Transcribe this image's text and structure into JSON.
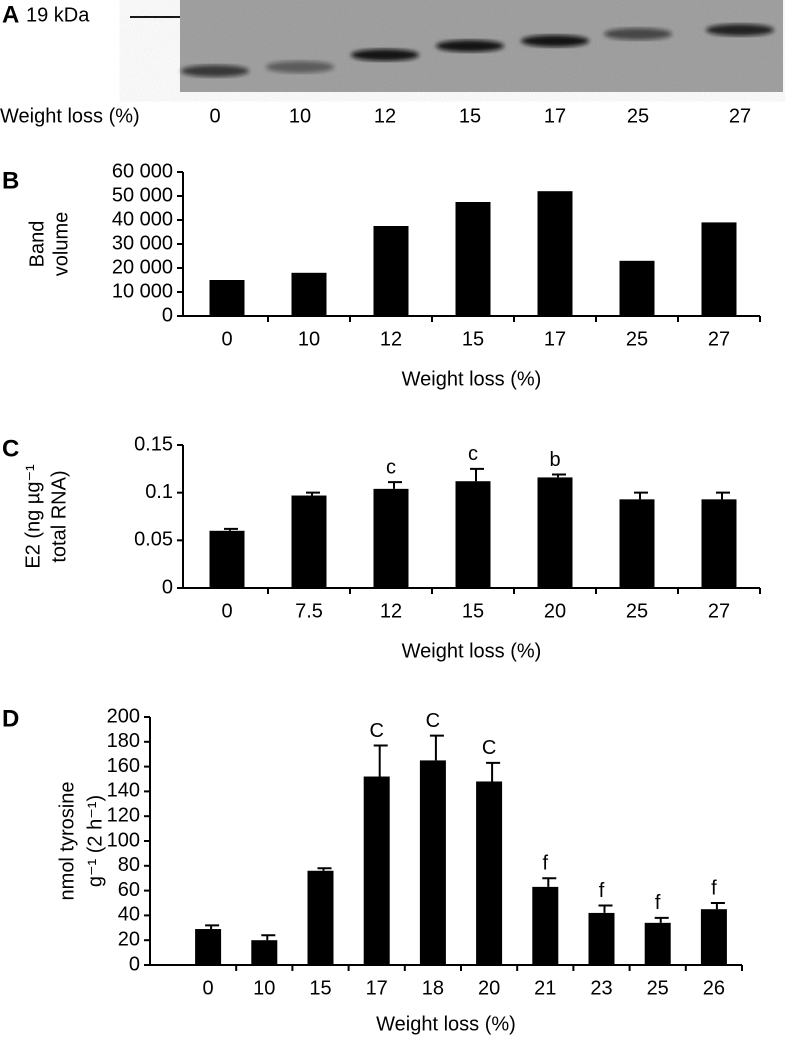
{
  "chart_data": [
    {
      "type": "blot",
      "panel": "A",
      "marker_label": "19 kDa",
      "xlabel": "Weight loss (%)",
      "categories": [
        "0",
        "10",
        "12",
        "15",
        "17",
        "25",
        "27"
      ]
    },
    {
      "type": "bar",
      "panel": "B",
      "ylabel": [
        "Band",
        "volume"
      ],
      "xlabel": "Weight loss (%)",
      "categories": [
        "0",
        "10",
        "12",
        "15",
        "17",
        "25",
        "27"
      ],
      "values": [
        15000,
        18000,
        37500,
        47500,
        52000,
        23000,
        39000
      ],
      "color": "#000000",
      "ylim": [
        0,
        60000
      ],
      "yticks": [
        0,
        {
          "value": 10000,
          "label": "10 000"
        },
        {
          "value": 20000,
          "label": "20 000"
        },
        {
          "value": 30000,
          "label": "30 000"
        },
        {
          "value": 40000,
          "label": "40 000"
        },
        {
          "value": 50000,
          "label": "50 000"
        },
        {
          "value": 60000,
          "label": "60 000"
        }
      ]
    },
    {
      "type": "bar",
      "panel": "C",
      "ylabel": [
        "E2 (ng µg⁻¹",
        "total RNA)"
      ],
      "xlabel": "Weight loss (%)",
      "categories": [
        "0",
        "7.5",
        "12",
        "15",
        "20",
        "25",
        "27"
      ],
      "values": [
        0.06,
        0.097,
        0.104,
        0.112,
        0.116,
        0.093,
        0.093
      ],
      "errors": [
        0.002,
        0.003,
        0.007,
        0.013,
        0.003,
        0.007,
        0.007
      ],
      "annotations": [
        null,
        null,
        "c",
        "c",
        "b",
        null,
        null
      ],
      "color": "#000000",
      "ylim": [
        0,
        0.15
      ],
      "yticks": [
        0,
        0.05,
        0.1,
        0.15
      ]
    },
    {
      "type": "bar",
      "panel": "D",
      "ylabel": [
        "nmol tyrosine",
        "g⁻¹ (2 h⁻¹)"
      ],
      "xlabel": "Weight loss (%)",
      "categories": [
        "0",
        "10",
        "15",
        "17",
        "18",
        "20",
        "21",
        "23",
        "25",
        "26"
      ],
      "values": [
        29,
        20,
        76,
        152,
        165,
        148,
        63,
        42,
        34,
        45
      ],
      "errors": [
        3,
        4,
        2,
        25,
        20,
        15,
        7,
        6,
        4,
        5
      ],
      "annotations": [
        null,
        null,
        null,
        "C",
        "C",
        "C",
        "f",
        "f",
        "f",
        "f"
      ],
      "color": "#000000",
      "ylim": [
        0,
        200
      ],
      "yticks": [
        0,
        20,
        40,
        60,
        80,
        100,
        120,
        140,
        160,
        180,
        200
      ]
    }
  ]
}
